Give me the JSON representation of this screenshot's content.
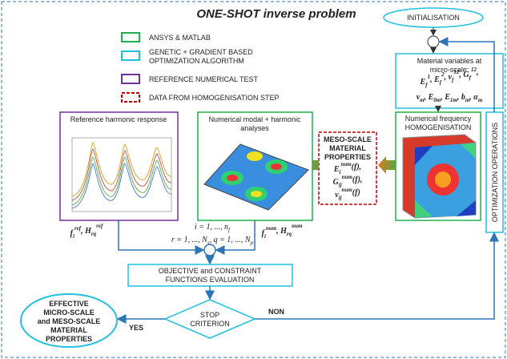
{
  "title": "ONE-SHOT inverse problem",
  "legend": {
    "green": "ANSYS & MATLAB",
    "cyan": [
      "GENETIC + GRADIENT BASED",
      "OPTIMIZATION ALGORITHM"
    ],
    "purple": "REFERENCE NUMERICAL TEST",
    "red": "DATA FROM HOMOGENISATION STEP"
  },
  "initialisation": "INITIALISATION",
  "material_box": {
    "title": [
      "Material variables at",
      "micro-scale:"
    ],
    "lines": [
      [
        {
          "b": "E",
          "sub": "f",
          "sup": "1"
        },
        ", ",
        {
          "b": "E",
          "sub": "f",
          "sup": "2"
        },
        ", ",
        {
          "b": "ν",
          "sub": "f",
          "sup": "12"
        },
        ", ",
        {
          "b": "G",
          "sub": "f",
          "sup": "12"
        },
        ","
      ],
      [
        {
          "b": "ν",
          "sub": "m"
        },
        ", ",
        {
          "b": "E",
          "sub": "0m"
        },
        ", ",
        {
          "b": "E",
          "sub": "1m"
        },
        ", ",
        {
          "b": "b",
          "sub": "m"
        },
        ", ",
        {
          "b": "α",
          "sub": "m"
        }
      ]
    ]
  },
  "homogenisation_box": [
    "Numerical frequency",
    "HOMOGENISATION"
  ],
  "optimization_box": "OPTIMIZATION OPERATIONS",
  "reference_box": "Reference harmonic response",
  "numerical_box": [
    "Numerical modal + harmonic",
    "analyses"
  ],
  "meso_box": {
    "title": [
      "MESO-SCALE",
      "MATERIAL",
      "PROPERTIES"
    ],
    "lines": [
      [
        {
          "b": "E",
          "sub": "i",
          "sup": "num"
        },
        "(f),"
      ],
      [
        {
          "b": "G",
          "sub": "ij",
          "sup": "num"
        },
        "(f),"
      ],
      [
        {
          "b": "ν",
          "sub": "ij",
          "sup": "num"
        },
        "(f)"
      ]
    ]
  },
  "ref_label": [
    {
      "b": "f",
      "sub": "i",
      "sup": "ref"
    },
    ", ",
    {
      "b": "H",
      "sub": "rq",
      "sup": "ref"
    }
  ],
  "num_label": [
    {
      "b": "f",
      "sub": "i",
      "sup": "num"
    },
    ", ",
    {
      "b": "H",
      "sub": "rq",
      "sup": "num"
    }
  ],
  "indices": [
    [
      "i = 1, ..., ",
      {
        "b": "n",
        "sub": "f"
      }
    ],
    [
      "r = 1, ..., ",
      {
        "b": "N",
        "sub": "s"
      },
      ", q = 1, ..., ",
      {
        "b": "N",
        "sub": "p"
      }
    ]
  ],
  "objective_box": [
    "OBJECTIVE and CONSTRAINT",
    "FUNCTIONS EVALUATION"
  ],
  "stop": [
    "STOP",
    "CRITERION"
  ],
  "yes": "YES",
  "non": "NON",
  "effective": [
    "EFFECTIVE",
    "MICRO-SCALE",
    "and MESO-SCALE",
    "MATERIAL",
    "PROPERTIES"
  ]
}
